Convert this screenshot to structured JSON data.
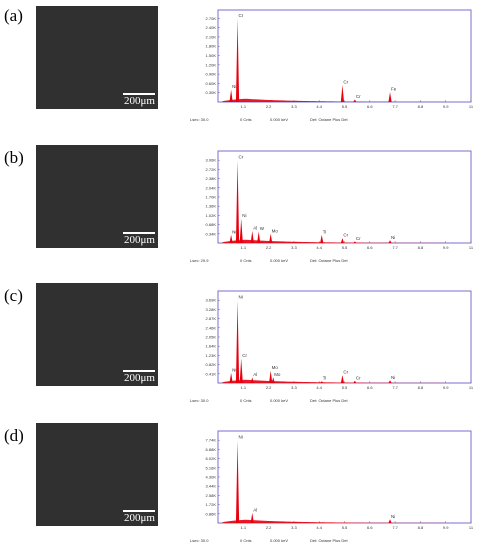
{
  "panels": [
    {
      "label": "(a)",
      "scale_bar": "200μm",
      "eds_footer": {
        "lsec": "Lsec: 30.0",
        "cnts": "0 Cnts",
        "kev": "0.000 keV",
        "det": "Det: Octane Plus Det"
      },
      "peak_labels": [
        "Ni",
        "Cr",
        "Cr",
        "Cr",
        "Fe"
      ],
      "ytick_labels": [
        "0.30K",
        "0.60K",
        "0.90K",
        "1.20K",
        "1.50K",
        "1.80K",
        "2.10K",
        "2.40K",
        "2.70K"
      ],
      "xtick_labels": [
        "1.1",
        "2.2",
        "3.3",
        "4.4",
        "5.5",
        "6.6",
        "7.7",
        "8.8",
        "9.9",
        "11"
      ]
    },
    {
      "label": "(b)",
      "scale_bar": "200μm",
      "eds_footer": {
        "lsec": "Lsec: 29.9",
        "cnts": "0 Cnts",
        "kev": "0.000 keV",
        "det": "Det: Octane Plus Det"
      },
      "peak_labels": [
        "Ni",
        "Cr",
        "Ni",
        "Al",
        "W",
        "Mo",
        "Ti",
        "Cr",
        "Cr",
        "Ni"
      ],
      "ytick_labels": [
        "0.34K",
        "0.68K",
        "1.02K",
        "1.36K",
        "1.70K",
        "2.04K",
        "2.38K",
        "2.72K",
        "3.06K"
      ],
      "xtick_labels": [
        "1.1",
        "2.2",
        "3.3",
        "4.4",
        "5.5",
        "6.6",
        "7.7",
        "8.8",
        "9.9",
        "11"
      ]
    },
    {
      "label": "(c)",
      "scale_bar": "200μm",
      "eds_footer": {
        "lsec": "Lsec: 30.0",
        "cnts": "0 Cnts",
        "kev": "0.000 keV",
        "det": "Det: Octane Plus Det"
      },
      "peak_labels": [
        "Ni",
        "Ni",
        "Cr",
        "Al",
        "Mo",
        "Mo",
        "Ti",
        "Cr",
        "Cr",
        "Ni"
      ],
      "ytick_labels": [
        "0.41K",
        "0.82K",
        "1.23K",
        "1.64K",
        "2.05K",
        "2.46K",
        "2.87K",
        "3.28K",
        "3.69K"
      ],
      "xtick_labels": [
        "1.1",
        "2.2",
        "3.3",
        "4.4",
        "5.5",
        "6.6",
        "7.7",
        "8.8",
        "9.9",
        "11"
      ]
    },
    {
      "label": "(d)",
      "scale_bar": "200μm",
      "eds_footer": {
        "lsec": "Lsec: 30.0",
        "cnts": "0 Cnts",
        "kev": "0.000 keV",
        "det": "Det: Octane Plus Det"
      },
      "peak_labels": [
        "Ni",
        "Al",
        "Ni"
      ],
      "ytick_labels": [
        "0.86K",
        "1.72K",
        "2.58K",
        "3.44K",
        "4.30K",
        "5.16K",
        "6.02K",
        "6.88K",
        "7.74K"
      ],
      "xtick_labels": [
        "1.1",
        "2.2",
        "3.3",
        "4.4",
        "5.5",
        "6.6",
        "7.7",
        "8.8",
        "9.9",
        "11"
      ]
    }
  ],
  "colors": {
    "frame": "#7a6fd0",
    "spectrum": "#e8000f"
  },
  "chart_data": [
    {
      "type": "area",
      "xlim": [
        0,
        11
      ],
      "ylim": [
        0,
        2.97
      ],
      "x_unit": "keV",
      "y_unit": "K counts",
      "peaks": [
        {
          "x": 0.57,
          "y": 0.4,
          "label": "Cr"
        },
        {
          "x": 0.85,
          "y": 2.7,
          "label": "Ni"
        },
        {
          "x": 5.41,
          "y": 0.55,
          "label": "Cr"
        },
        {
          "x": 5.95,
          "y": 0.08,
          "label": "Cr"
        },
        {
          "x": 7.48,
          "y": 0.32,
          "label": "Fe"
        }
      ]
    },
    {
      "type": "area",
      "xlim": [
        0,
        11
      ],
      "ylim": [
        0,
        3.4
      ],
      "x_unit": "keV",
      "y_unit": "K counts",
      "peaks": [
        {
          "x": 0.57,
          "y": 0.3,
          "label": "Cr"
        },
        {
          "x": 0.85,
          "y": 3.06,
          "label": "Ni"
        },
        {
          "x": 1.01,
          "y": 0.9,
          "label": "Ni"
        },
        {
          "x": 1.49,
          "y": 0.45,
          "label": "Al"
        },
        {
          "x": 1.77,
          "y": 0.42,
          "label": "W"
        },
        {
          "x": 2.29,
          "y": 0.34,
          "label": "Mo"
        },
        {
          "x": 4.51,
          "y": 0.3,
          "label": "Ti"
        },
        {
          "x": 5.41,
          "y": 0.18,
          "label": "Cr"
        },
        {
          "x": 5.95,
          "y": 0.06,
          "label": "Cr"
        },
        {
          "x": 7.48,
          "y": 0.1,
          "label": "Ni"
        }
      ]
    },
    {
      "type": "area",
      "xlim": [
        0,
        11
      ],
      "ylim": [
        0,
        4.1
      ],
      "x_unit": "keV",
      "y_unit": "K counts",
      "peaks": [
        {
          "x": 0.57,
          "y": 0.45,
          "label": "Cr"
        },
        {
          "x": 0.85,
          "y": 3.69,
          "label": "Ni"
        },
        {
          "x": 1.01,
          "y": 1.1,
          "label": "Ni"
        },
        {
          "x": 1.49,
          "y": 0.25,
          "label": "Al"
        },
        {
          "x": 2.29,
          "y": 0.55,
          "label": "Mo"
        },
        {
          "x": 2.4,
          "y": 0.25,
          "label": "Mo"
        },
        {
          "x": 4.51,
          "y": 0.08,
          "label": "Ti"
        },
        {
          "x": 5.41,
          "y": 0.35,
          "label": "Cr"
        },
        {
          "x": 5.95,
          "y": 0.1,
          "label": "Cr"
        },
        {
          "x": 7.48,
          "y": 0.12,
          "label": "Ni"
        }
      ]
    },
    {
      "type": "area",
      "xlim": [
        0,
        11
      ],
      "ylim": [
        0,
        8.6
      ],
      "x_unit": "keV",
      "y_unit": "K counts",
      "peaks": [
        {
          "x": 0.85,
          "y": 7.74,
          "label": "Ni"
        },
        {
          "x": 1.49,
          "y": 0.95,
          "label": "Al"
        },
        {
          "x": 7.48,
          "y": 0.35,
          "label": "Ni"
        }
      ]
    }
  ]
}
